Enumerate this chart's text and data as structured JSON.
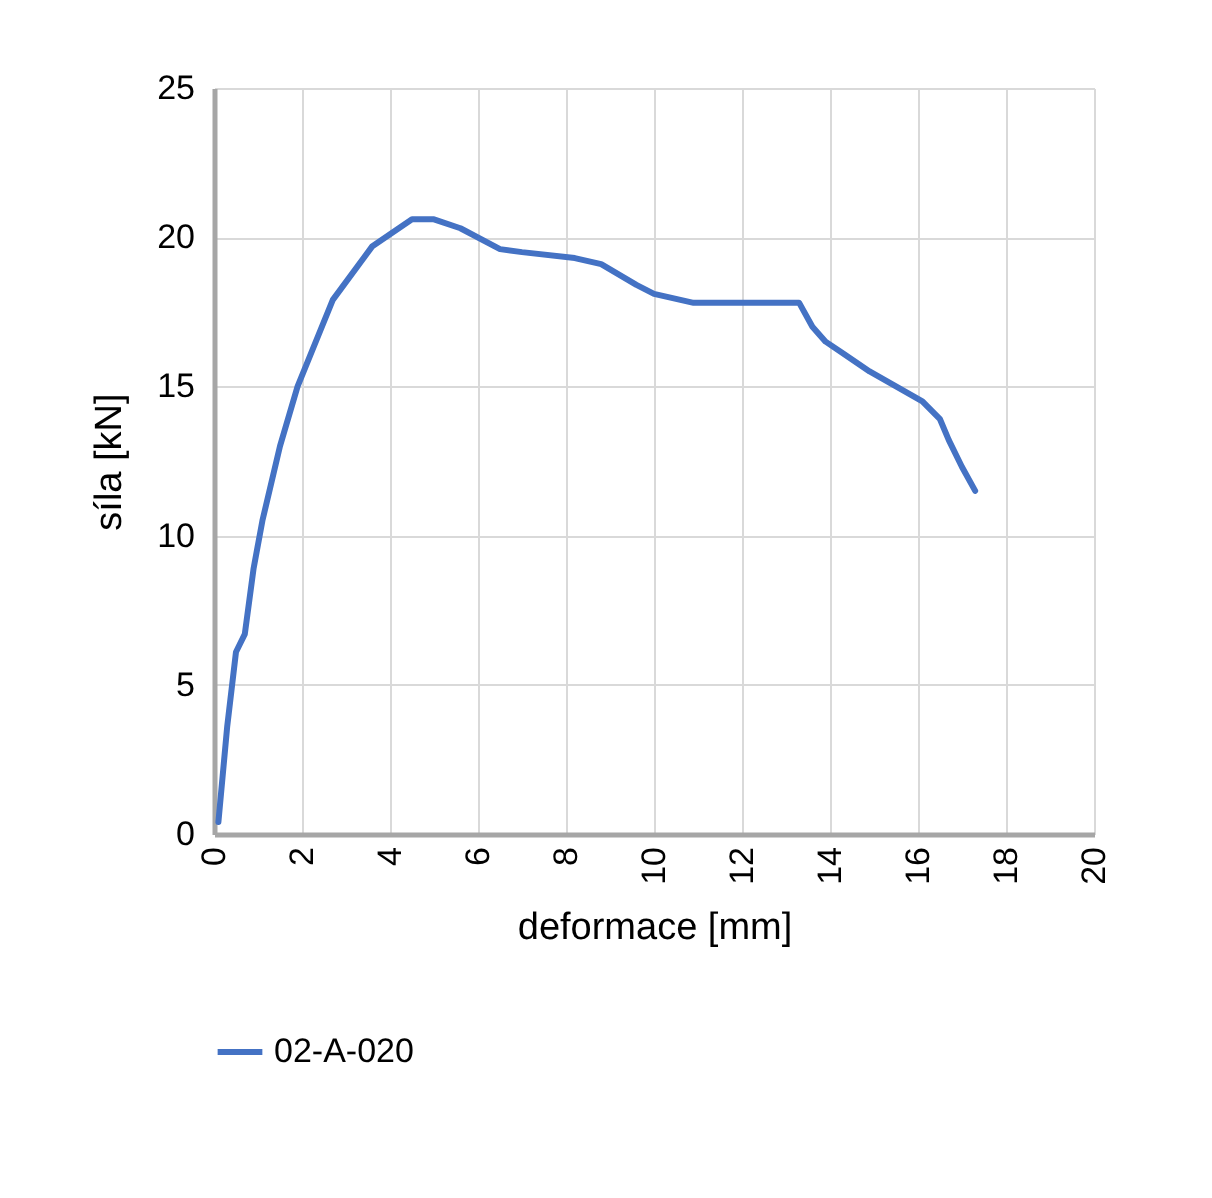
{
  "chart_data": {
    "type": "line",
    "xlabel": "deformace [mm]",
    "ylabel": "síla [kN]",
    "series": [
      {
        "name": "02-A-020",
        "color": "#4472c4",
        "x": [
          0.1,
          0.3,
          0.5,
          0.7,
          0.9,
          1.1,
          1.5,
          1.9,
          2.7,
          3.6,
          4.5,
          5.0,
          5.6,
          6.5,
          7.0,
          8.2,
          8.8,
          9.6,
          10.0,
          10.9,
          12.1,
          13.3,
          13.6,
          13.9,
          14.3,
          14.9,
          15.5,
          16.1,
          16.5,
          16.7,
          17.0,
          17.3
        ],
        "values": [
          0.4,
          3.6,
          6.1,
          6.7,
          8.9,
          10.5,
          13.0,
          15.0,
          17.9,
          19.7,
          20.6,
          20.6,
          20.3,
          19.6,
          19.5,
          19.3,
          19.1,
          18.4,
          18.1,
          17.8,
          17.8,
          17.8,
          17.0,
          16.5,
          16.1,
          15.5,
          15.0,
          14.5,
          13.9,
          13.2,
          12.3,
          11.5
        ]
      }
    ],
    "xlim": [
      0,
      20
    ],
    "xticks": [
      0,
      2,
      4,
      6,
      8,
      10,
      12,
      14,
      16,
      18,
      20
    ],
    "ylim": [
      0,
      25
    ],
    "yticks": [
      0,
      5,
      10,
      15,
      20,
      25
    ],
    "grid": true,
    "legend": "bottom",
    "marker": "none",
    "line_style": "solid"
  }
}
